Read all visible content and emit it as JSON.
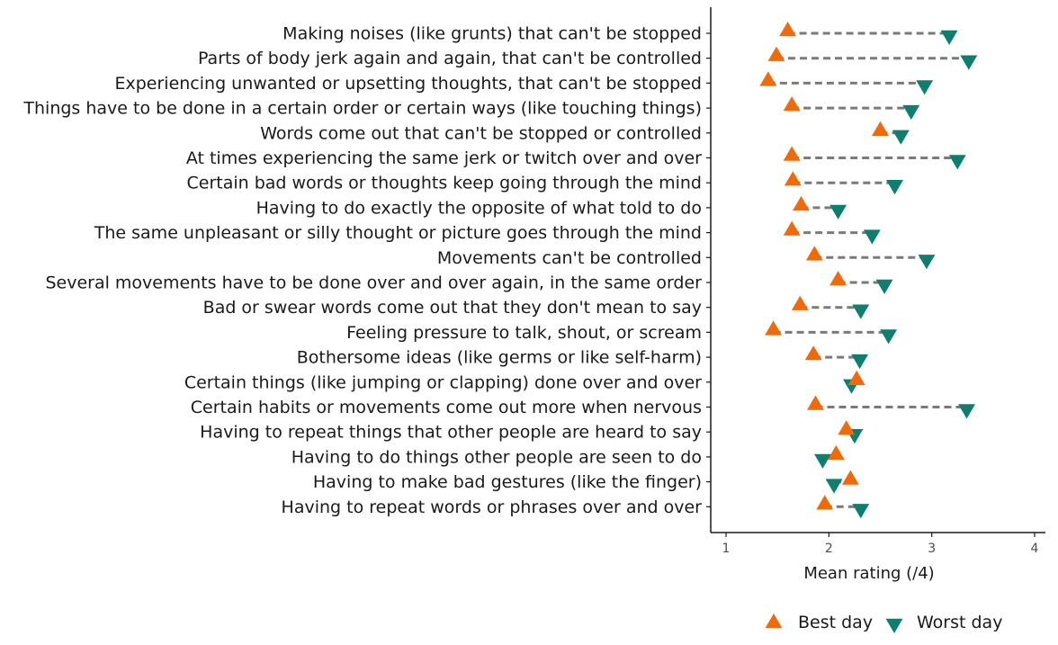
{
  "chart_data": {
    "type": "dumbbell",
    "title": "",
    "xlabel": "Mean rating (/4)",
    "ylabel": "",
    "xlim": [
      0.85,
      4.1
    ],
    "x_ticks": [
      1,
      2,
      3,
      4
    ],
    "grid": false,
    "legend_position": "bottom",
    "categories": [
      "Making noises (like grunts) that can't be stopped",
      "Parts of body jerk again and again, that can't be controlled",
      "Experiencing unwanted or upsetting thoughts, that can't be stopped",
      "Things have to be done in a certain order or certain ways (like touching things)",
      "Words come out that can't be stopped or controlled",
      "At times experiencing the same jerk or twitch over and over",
      "Certain bad words or thoughts keep going through the mind",
      "Having to do exactly the opposite of what told to do",
      "The same unpleasant or silly thought or picture goes through the mind",
      "Movements can't be controlled",
      "Several movements have to be done over and over again, in the same order",
      "Bad or swear words come out that they don't mean to say",
      "Feeling pressure to talk, shout, or scream",
      "Bothersome ideas (like germs or like self-harm)",
      "Certain things (like jumping or clapping) done over and over",
      "Certain habits or movements come out more when nervous",
      "Having to repeat things that other people are heard to say",
      "Having to do things other people are seen to do",
      "Having to make bad gestures (like the finger)",
      "Having to repeat words or phrases over and over"
    ],
    "series": [
      {
        "name": "Best day",
        "color": "#F06A0A",
        "marker": "triangle-up",
        "values": [
          1.6,
          1.49,
          1.41,
          1.64,
          2.5,
          1.64,
          1.65,
          1.73,
          1.64,
          1.86,
          2.09,
          1.72,
          1.46,
          1.85,
          2.27,
          1.87,
          2.17,
          2.07,
          2.21,
          1.96
        ]
      },
      {
        "name": "Worst day",
        "color": "#0E7E6F",
        "marker": "triangle-down",
        "values": [
          3.17,
          3.36,
          2.93,
          2.8,
          2.7,
          3.25,
          2.64,
          2.09,
          2.42,
          2.95,
          2.54,
          2.31,
          2.58,
          2.3,
          2.22,
          3.34,
          2.25,
          1.94,
          2.05,
          2.31
        ]
      }
    ]
  },
  "colors": {
    "best": "#F06A0A",
    "worst": "#0E7E6F",
    "connector": "#7a7a7a",
    "axis": "#1a1a1a"
  },
  "legend": {
    "best_label": "Best day",
    "worst_label": "Worst day"
  }
}
